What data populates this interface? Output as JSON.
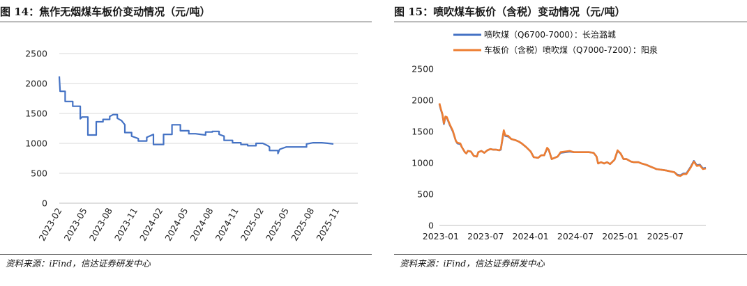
{
  "left": {
    "title": "图 14：焦作无烟煤车板价变动情况（元/吨）",
    "source": "资料来源：iFind，信达证券研发中心",
    "chart_data": {
      "type": "line",
      "x_tick_labels": [
        "2023-02",
        "2023-05",
        "2023-08",
        "2023-11",
        "2024-02",
        "2024-05",
        "2024-08",
        "2024-11",
        "2025-02",
        "2025-05",
        "2025-08",
        "2025-11"
      ],
      "y_tick_labels": [
        "0",
        "500",
        "1000",
        "1500",
        "2000",
        "2500"
      ],
      "ylim": [
        0,
        2500
      ],
      "xlim_months": [
        0,
        35.5
      ],
      "grid": true,
      "series": [
        {
          "color": "#4472C4",
          "points": [
            [
              0.0,
              2120
            ],
            [
              0.1,
              1870
            ],
            [
              0.7,
              1870
            ],
            [
              0.7,
              1700
            ],
            [
              1.6,
              1700
            ],
            [
              1.6,
              1620
            ],
            [
              2.5,
              1620
            ],
            [
              2.5,
              1410
            ],
            [
              2.7,
              1440
            ],
            [
              3.4,
              1440
            ],
            [
              3.4,
              1140
            ],
            [
              4.4,
              1140
            ],
            [
              4.4,
              1360
            ],
            [
              5.2,
              1360
            ],
            [
              5.2,
              1400
            ],
            [
              6.0,
              1400
            ],
            [
              6.0,
              1450
            ],
            [
              6.4,
              1480
            ],
            [
              6.9,
              1480
            ],
            [
              6.9,
              1420
            ],
            [
              7.4,
              1380
            ],
            [
              7.8,
              1310
            ],
            [
              7.8,
              1180
            ],
            [
              8.6,
              1180
            ],
            [
              8.6,
              1120
            ],
            [
              9.4,
              1080
            ],
            [
              9.4,
              1040
            ],
            [
              10.4,
              1040
            ],
            [
              10.4,
              1100
            ],
            [
              11.2,
              1150
            ],
            [
              11.2,
              980
            ],
            [
              12.4,
              980
            ],
            [
              12.4,
              1150
            ],
            [
              13.4,
              1150
            ],
            [
              13.4,
              1310
            ],
            [
              14.4,
              1310
            ],
            [
              14.4,
              1210
            ],
            [
              15.4,
              1210
            ],
            [
              15.4,
              1160
            ],
            [
              16.2,
              1160
            ],
            [
              16.8,
              1150
            ],
            [
              17.4,
              1140
            ],
            [
              17.4,
              1190
            ],
            [
              18.2,
              1190
            ],
            [
              18.2,
              1200
            ],
            [
              19.0,
              1200
            ],
            [
              19.0,
              1150
            ],
            [
              19.6,
              1120
            ],
            [
              19.6,
              1050
            ],
            [
              20.6,
              1050
            ],
            [
              20.6,
              1010
            ],
            [
              21.6,
              1010
            ],
            [
              21.6,
              980
            ],
            [
              22.4,
              980
            ],
            [
              22.4,
              960
            ],
            [
              23.4,
              960
            ],
            [
              23.4,
              1000
            ],
            [
              24.2,
              1000
            ],
            [
              24.8,
              960
            ],
            [
              25.0,
              940
            ],
            [
              25.0,
              880
            ],
            [
              26.0,
              880
            ],
            [
              26.0,
              830
            ],
            [
              26.2,
              900
            ],
            [
              26.6,
              920
            ],
            [
              27.0,
              940
            ],
            [
              27.6,
              940
            ],
            [
              28.2,
              940
            ],
            [
              28.8,
              940
            ],
            [
              29.4,
              940
            ],
            [
              29.4,
              990
            ],
            [
              30.2,
              1010
            ],
            [
              31.2,
              1010
            ],
            [
              32.0,
              1000
            ],
            [
              32.6,
              990
            ]
          ]
        }
      ]
    }
  },
  "right": {
    "title": "图 15：喷吹煤车板价（含税）变动情况（元/吨）",
    "source": "资料来源：iFind，信达证券研发中心",
    "chart_data": {
      "type": "line",
      "x_tick_labels": [
        "2023-01",
        "2023-07",
        "2024-01",
        "2024-07",
        "2025-01",
        "2025-07"
      ],
      "y_tick_labels": [
        "0",
        "500",
        "1000",
        "1500",
        "2000",
        "2500"
      ],
      "ylim": [
        0,
        2500
      ],
      "xlim_months": [
        0,
        35.6
      ],
      "grid": false,
      "legend_placement": "top-left",
      "series": [
        {
          "name": "喷吹煤（Q6700-7000）：长治潞城",
          "color": "#4472C4",
          "points": [
            [
              0.0,
              1940
            ],
            [
              0.2,
              1850
            ],
            [
              0.4,
              1770
            ],
            [
              0.6,
              1620
            ],
            [
              0.8,
              1730
            ],
            [
              1.0,
              1720
            ],
            [
              1.4,
              1600
            ],
            [
              1.8,
              1500
            ],
            [
              2.2,
              1350
            ],
            [
              2.4,
              1310
            ],
            [
              2.8,
              1300
            ],
            [
              3.0,
              1250
            ],
            [
              3.4,
              1170
            ],
            [
              3.6,
              1150
            ],
            [
              3.8,
              1190
            ],
            [
              4.2,
              1180
            ],
            [
              4.6,
              1110
            ],
            [
              5.0,
              1100
            ],
            [
              5.2,
              1170
            ],
            [
              5.6,
              1190
            ],
            [
              6.0,
              1160
            ],
            [
              6.4,
              1200
            ],
            [
              6.8,
              1220
            ],
            [
              7.2,
              1210
            ],
            [
              7.6,
              1210
            ],
            [
              8.0,
              1200
            ],
            [
              8.2,
              1210
            ],
            [
              8.6,
              1510
            ],
            [
              8.8,
              1430
            ],
            [
              9.2,
              1420
            ],
            [
              9.6,
              1380
            ],
            [
              10.2,
              1360
            ],
            [
              10.6,
              1340
            ],
            [
              11.0,
              1310
            ],
            [
              11.6,
              1250
            ],
            [
              12.2,
              1180
            ],
            [
              12.6,
              1090
            ],
            [
              13.2,
              1080
            ],
            [
              13.6,
              1120
            ],
            [
              14.0,
              1120
            ],
            [
              14.4,
              1230
            ],
            [
              14.6,
              1210
            ],
            [
              15.0,
              1060
            ],
            [
              15.4,
              1080
            ],
            [
              15.8,
              1100
            ],
            [
              16.2,
              1160
            ],
            [
              16.8,
              1170
            ],
            [
              17.4,
              1180
            ],
            [
              18.0,
              1170
            ],
            [
              18.6,
              1170
            ],
            [
              19.2,
              1170
            ],
            [
              20.0,
              1170
            ],
            [
              20.6,
              1160
            ],
            [
              21.0,
              1100
            ],
            [
              21.2,
              990
            ],
            [
              21.6,
              1010
            ],
            [
              22.0,
              990
            ],
            [
              22.4,
              1010
            ],
            [
              22.8,
              980
            ],
            [
              23.4,
              1050
            ],
            [
              23.8,
              1190
            ],
            [
              24.2,
              1150
            ],
            [
              24.6,
              1060
            ],
            [
              25.0,
              1060
            ],
            [
              25.6,
              1020
            ],
            [
              26.0,
              1010
            ],
            [
              26.6,
              1010
            ],
            [
              27.0,
              990
            ],
            [
              27.6,
              970
            ],
            [
              28.0,
              950
            ],
            [
              28.6,
              920
            ],
            [
              29.0,
              900
            ],
            [
              29.6,
              890
            ],
            [
              30.2,
              880
            ],
            [
              30.6,
              870
            ],
            [
              31.0,
              860
            ],
            [
              31.4,
              850
            ],
            [
              31.8,
              810
            ],
            [
              32.2,
              800
            ],
            [
              32.6,
              830
            ],
            [
              33.0,
              830
            ],
            [
              33.6,
              940
            ],
            [
              34.0,
              1030
            ],
            [
              34.4,
              960
            ],
            [
              34.8,
              970
            ],
            [
              35.2,
              910
            ],
            [
              35.6,
              920
            ]
          ]
        },
        {
          "name": "车板价（含税）喷吹煤（Q7000-7200）：阳泉",
          "color": "#ED7D31",
          "points": [
            [
              0.0,
              1950
            ],
            [
              0.2,
              1860
            ],
            [
              0.4,
              1780
            ],
            [
              0.6,
              1630
            ],
            [
              0.8,
              1740
            ],
            [
              1.0,
              1730
            ],
            [
              1.4,
              1610
            ],
            [
              1.8,
              1510
            ],
            [
              2.2,
              1350
            ],
            [
              2.4,
              1320
            ],
            [
              2.8,
              1310
            ],
            [
              3.0,
              1250
            ],
            [
              3.4,
              1170
            ],
            [
              3.6,
              1150
            ],
            [
              3.8,
              1190
            ],
            [
              4.2,
              1180
            ],
            [
              4.6,
              1110
            ],
            [
              5.0,
              1100
            ],
            [
              5.2,
              1170
            ],
            [
              5.6,
              1190
            ],
            [
              6.0,
              1160
            ],
            [
              6.4,
              1200
            ],
            [
              6.8,
              1220
            ],
            [
              7.2,
              1210
            ],
            [
              7.6,
              1210
            ],
            [
              8.0,
              1200
            ],
            [
              8.2,
              1220
            ],
            [
              8.6,
              1520
            ],
            [
              8.8,
              1440
            ],
            [
              9.2,
              1430
            ],
            [
              9.6,
              1380
            ],
            [
              10.2,
              1360
            ],
            [
              10.6,
              1340
            ],
            [
              11.0,
              1310
            ],
            [
              11.6,
              1250
            ],
            [
              12.2,
              1180
            ],
            [
              12.6,
              1090
            ],
            [
              13.2,
              1080
            ],
            [
              13.6,
              1120
            ],
            [
              14.0,
              1120
            ],
            [
              14.4,
              1240
            ],
            [
              14.6,
              1210
            ],
            [
              15.0,
              1060
            ],
            [
              15.4,
              1080
            ],
            [
              15.8,
              1100
            ],
            [
              16.2,
              1170
            ],
            [
              16.8,
              1180
            ],
            [
              17.4,
              1190
            ],
            [
              18.0,
              1170
            ],
            [
              18.6,
              1170
            ],
            [
              19.2,
              1170
            ],
            [
              20.0,
              1170
            ],
            [
              20.6,
              1160
            ],
            [
              21.0,
              1100
            ],
            [
              21.2,
              990
            ],
            [
              21.6,
              1010
            ],
            [
              22.0,
              990
            ],
            [
              22.4,
              1010
            ],
            [
              22.8,
              980
            ],
            [
              23.4,
              1050
            ],
            [
              23.8,
              1200
            ],
            [
              24.2,
              1150
            ],
            [
              24.6,
              1060
            ],
            [
              25.0,
              1060
            ],
            [
              25.6,
              1020
            ],
            [
              26.0,
              1010
            ],
            [
              26.6,
              1010
            ],
            [
              27.0,
              990
            ],
            [
              27.6,
              970
            ],
            [
              28.0,
              950
            ],
            [
              28.6,
              920
            ],
            [
              29.0,
              900
            ],
            [
              29.6,
              890
            ],
            [
              30.2,
              880
            ],
            [
              30.6,
              870
            ],
            [
              31.0,
              860
            ],
            [
              31.4,
              850
            ],
            [
              31.8,
              800
            ],
            [
              32.2,
              790
            ],
            [
              32.6,
              820
            ],
            [
              33.0,
              820
            ],
            [
              33.6,
              930
            ],
            [
              34.0,
              1020
            ],
            [
              34.4,
              950
            ],
            [
              34.8,
              960
            ],
            [
              35.2,
              900
            ],
            [
              35.6,
              910
            ]
          ]
        }
      ]
    }
  }
}
